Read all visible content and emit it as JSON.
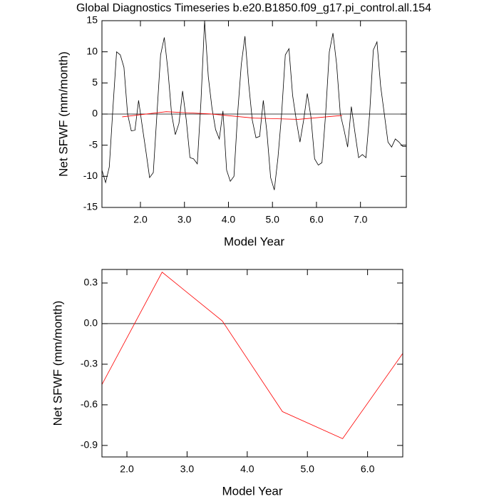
{
  "chart_data": [
    {
      "type": "line",
      "title": "Global Diagnostics Timeseries b.e20.B1850.f09_g17.pi_control.all.154",
      "xlabel": "Model Year",
      "ylabel": "Net SFWF (mm/month)",
      "xlim": [
        1.125,
        8.042
      ],
      "ylim": [
        -15,
        15
      ],
      "xticks": [
        {
          "value": 2,
          "label": "2.0"
        },
        {
          "value": 3,
          "label": "3.0"
        },
        {
          "value": 4,
          "label": "4.0"
        },
        {
          "value": 5,
          "label": "5.0"
        },
        {
          "value": 6,
          "label": "6.0"
        },
        {
          "value": 7,
          "label": "7.0"
        }
      ],
      "yticks": [
        -15,
        -10,
        -5,
        0,
        5,
        10,
        15
      ],
      "hline": 0,
      "series": [
        {
          "color": "#000000",
          "x": [
            1.125,
            1.208,
            1.292,
            1.375,
            1.458,
            1.542,
            1.625,
            1.708,
            1.792,
            1.875,
            1.958,
            2.042,
            2.125,
            2.208,
            2.292,
            2.375,
            2.458,
            2.542,
            2.625,
            2.708,
            2.792,
            2.875,
            2.958,
            3.042,
            3.125,
            3.208,
            3.292,
            3.375,
            3.458,
            3.542,
            3.625,
            3.708,
            3.792,
            3.875,
            3.958,
            4.042,
            4.125,
            4.208,
            4.292,
            4.375,
            4.458,
            4.542,
            4.625,
            4.708,
            4.792,
            4.875,
            4.958,
            5.042,
            5.125,
            5.208,
            5.292,
            5.375,
            5.458,
            5.542,
            5.625,
            5.708,
            5.792,
            5.875,
            5.958,
            6.042,
            6.125,
            6.208,
            6.292,
            6.375,
            6.458,
            6.542,
            6.625,
            6.708,
            6.792,
            6.875,
            6.958,
            7.042,
            7.125,
            7.208,
            7.292,
            7.375,
            7.458,
            7.542,
            7.625,
            7.708,
            7.792,
            7.875,
            7.958,
            8.042
          ],
          "values": [
            -9,
            -11,
            -8.5,
            1,
            10,
            9.5,
            7.5,
            0,
            -2.7,
            -2.6,
            2.2,
            -2,
            -6,
            -10.2,
            -9.4,
            0,
            9.5,
            12.3,
            7,
            0,
            -3.3,
            -1.5,
            3.7,
            -1,
            -7,
            -7.2,
            -8,
            2,
            15,
            6,
            1,
            -2.5,
            -4,
            0.5,
            -9,
            -10.8,
            -10,
            0,
            8,
            12.5,
            5,
            -1,
            -3.8,
            -3.6,
            2.2,
            -3,
            -10.2,
            -12.2,
            -7,
            0,
            9.5,
            10.5,
            3,
            -1,
            -4.5,
            -1,
            3.3,
            -0.5,
            -7.2,
            -8.2,
            -7.8,
            0,
            10,
            13,
            8,
            0,
            -2.5,
            -5.3,
            1.2,
            -3,
            -7,
            -6.5,
            -7,
            0,
            10.3,
            11.6,
            4.5,
            0,
            -4.5,
            -5.3,
            -4,
            -4.5,
            -5.2,
            -5.2
          ]
        },
        {
          "color": "#ff0000",
          "x": [
            1.585,
            2.585,
            3.585,
            4.585,
            5.585,
            6.585
          ],
          "values": [
            -0.45,
            0.38,
            0.02,
            -0.65,
            -0.85,
            -0.22
          ]
        }
      ]
    },
    {
      "type": "line",
      "xlabel": "Model Year",
      "ylabel": "Net SFWF (mm/month)",
      "xlim": [
        1.585,
        6.585
      ],
      "ylim": [
        -0.985,
        0.4
      ],
      "xticks": [
        {
          "value": 2,
          "label": "2.0"
        },
        {
          "value": 3,
          "label": "3.0"
        },
        {
          "value": 4,
          "label": "4.0"
        },
        {
          "value": 5,
          "label": "5.0"
        },
        {
          "value": 6,
          "label": "6.0"
        }
      ],
      "yticks": [
        -0.9,
        -0.6,
        -0.3,
        {
          "value": 0,
          "label": "0.0"
        },
        0.3
      ],
      "hline": 0,
      "series": [
        {
          "color": "#ff0000",
          "x": [
            1.585,
            2.585,
            3.585,
            4.585,
            5.585,
            6.585
          ],
          "values": [
            -0.45,
            0.38,
            0.02,
            -0.65,
            -0.85,
            -0.22
          ]
        }
      ]
    }
  ]
}
